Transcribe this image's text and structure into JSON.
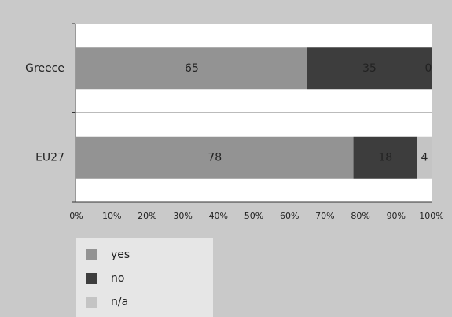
{
  "chart_data": {
    "type": "stacked_barh",
    "categories": [
      "Greece",
      "EU27"
    ],
    "series": [
      {
        "name": "yes",
        "color": "#939393",
        "values": [
          65,
          78
        ]
      },
      {
        "name": "no",
        "color": "#3d3d3d",
        "values": [
          35,
          18
        ]
      },
      {
        "name": "n/a",
        "color": "#c4c4c4",
        "values": [
          0,
          4
        ]
      }
    ],
    "xlim": [
      0,
      100
    ],
    "xticks": [
      {
        "value": 0,
        "label": "0%"
      },
      {
        "value": 10,
        "label": "10%"
      },
      {
        "value": 20,
        "label": "20%"
      },
      {
        "value": 30,
        "label": "30%"
      },
      {
        "value": 40,
        "label": "40%"
      },
      {
        "value": 50,
        "label": "50%"
      },
      {
        "value": 60,
        "label": "60%"
      },
      {
        "value": 70,
        "label": "70%"
      },
      {
        "value": 80,
        "label": "80%"
      },
      {
        "value": 90,
        "label": "90%"
      },
      {
        "value": 100,
        "label": "100%"
      }
    ]
  }
}
